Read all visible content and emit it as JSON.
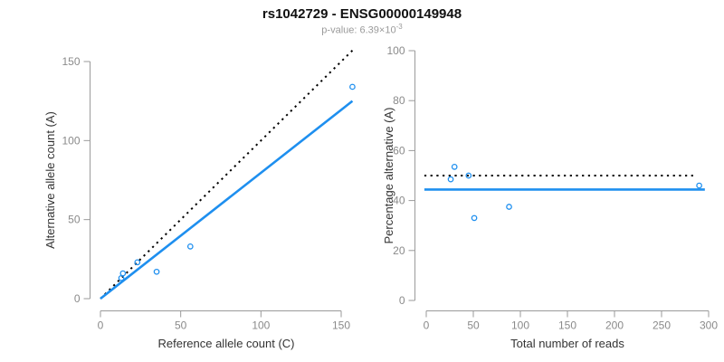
{
  "title": "rs1042729 - ENSG00000149948",
  "subtitle": {
    "prefix": "p-value: 6.39×10",
    "exponent": "-3"
  },
  "colors": {
    "accent": "#1E8FEF",
    "dotted_line": "#000000",
    "axis_line": "#9a9a9a",
    "tick_label": "#8a8a8a",
    "axis_title": "#333333",
    "title": "#111111",
    "subtitle": "#9a9a9a"
  },
  "chart_data": [
    {
      "type": "scatter",
      "panel": "left",
      "xlabel": "Reference allele count (C)",
      "ylabel": "Alternative allele count (A)",
      "xlim": [
        0,
        150
      ],
      "ylim": [
        0,
        150
      ],
      "xticks": [
        0,
        50,
        100,
        150
      ],
      "yticks": [
        0,
        50,
        100,
        150
      ],
      "grid": false,
      "points": [
        [
          13,
          13
        ],
        [
          14,
          16
        ],
        [
          23,
          23
        ],
        [
          35,
          17
        ],
        [
          56,
          33
        ],
        [
          157,
          134
        ]
      ],
      "lines": [
        {
          "name": "identity-line",
          "style": "dotted",
          "color": "#000000",
          "from": [
            0,
            0
          ],
          "to": [
            157,
            157
          ]
        },
        {
          "name": "fit-line",
          "style": "solid",
          "color": "accent",
          "from": [
            0,
            0
          ],
          "to": [
            157,
            125
          ]
        }
      ]
    },
    {
      "type": "scatter",
      "panel": "right",
      "xlabel": "Total number of reads",
      "ylabel": "Percentage alternative (A)",
      "xlim": [
        0,
        300
      ],
      "ylim": [
        0,
        100
      ],
      "xticks": [
        0,
        50,
        100,
        150,
        200,
        250,
        300
      ],
      "yticks": [
        0,
        20,
        40,
        60,
        80,
        100
      ],
      "grid": false,
      "points": [
        [
          26,
          48.5
        ],
        [
          30,
          53.5
        ],
        [
          45,
          50
        ],
        [
          51,
          33
        ],
        [
          88,
          37.5
        ],
        [
          290,
          46
        ]
      ],
      "lines": [
        {
          "name": "fifty-percent-line",
          "style": "dotted",
          "color": "#000000",
          "from": [
            -2,
            50
          ],
          "to": [
            287,
            50
          ]
        },
        {
          "name": "mean-percentage-line",
          "style": "solid",
          "color": "accent",
          "from": [
            -2,
            44.4
          ],
          "to": [
            296,
            44.4
          ]
        }
      ]
    }
  ]
}
